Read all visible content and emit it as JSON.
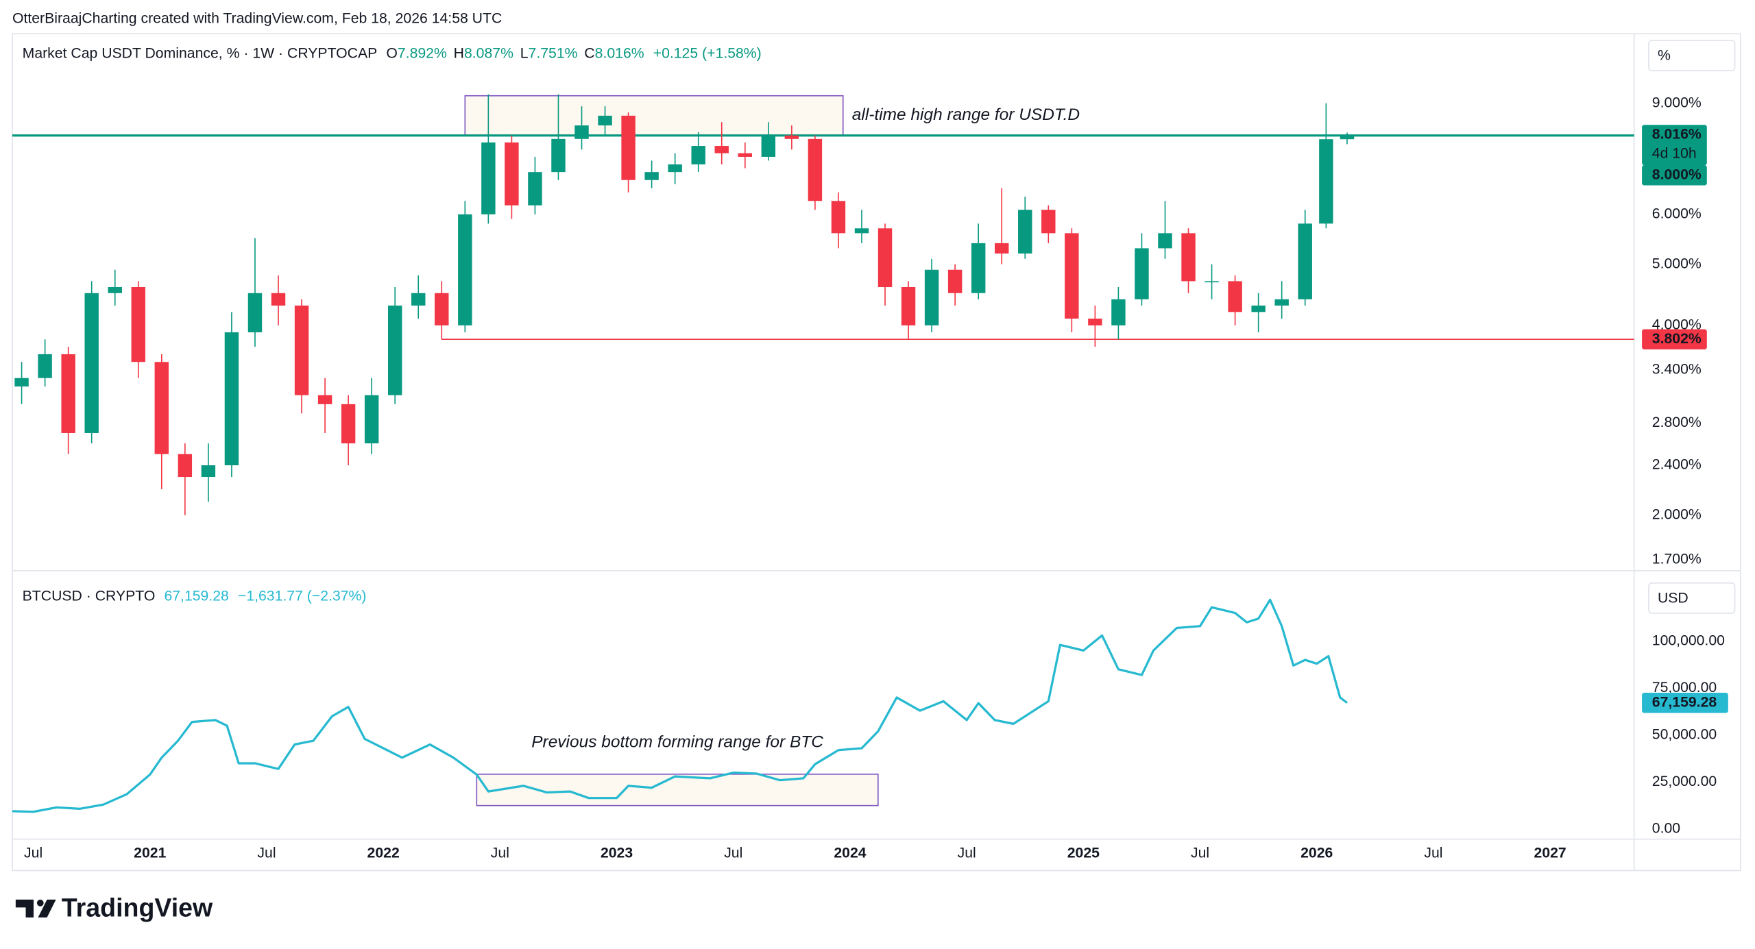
{
  "header": {
    "title": "OtterBiraajCharting created with TradingView.com, Feb 18, 2026 14:58 UTC"
  },
  "chart_data": [
    {
      "type": "candlestick",
      "title": "Market Cap USDT Dominance, % · 1W · CRYPTOCAP",
      "ohlc_legend": [
        {
          "key": "O",
          "value": "7.892%"
        },
        {
          "key": "H",
          "value": "8.087%"
        },
        {
          "key": "L",
          "value": "7.751%"
        },
        {
          "key": "C",
          "value": "8.016%"
        }
      ],
      "change": "+0.125 (+1.58%)",
      "unit_label": "%",
      "log_scale": true,
      "up_color": "#089981",
      "down_color": "#f23645",
      "x": [
        2020.45,
        2020.55,
        2020.65,
        2020.75,
        2020.85,
        2020.95,
        2021.05,
        2021.15,
        2021.25,
        2021.35,
        2021.45,
        2021.55,
        2021.65,
        2021.75,
        2021.85,
        2021.95,
        2022.05,
        2022.15,
        2022.25,
        2022.35,
        2022.45,
        2022.55,
        2022.65,
        2022.75,
        2022.85,
        2022.95,
        2023.05,
        2023.15,
        2023.25,
        2023.35,
        2023.45,
        2023.55,
        2023.65,
        2023.75,
        2023.85,
        2023.95,
        2024.05,
        2024.15,
        2024.25,
        2024.35,
        2024.45,
        2024.55,
        2024.65,
        2024.75,
        2024.85,
        2024.95,
        2025.05,
        2025.15,
        2025.25,
        2025.35,
        2025.45,
        2025.55,
        2025.65,
        2025.75,
        2025.85,
        2025.95,
        2026.04,
        2026.13
      ],
      "open": [
        3.2,
        3.3,
        3.6,
        2.7,
        4.5,
        4.6,
        3.5,
        2.5,
        2.3,
        2.4,
        3.9,
        4.5,
        4.3,
        3.1,
        3.0,
        2.6,
        3.1,
        4.3,
        4.5,
        4.0,
        6.0,
        7.8,
        6.2,
        7.0,
        7.9,
        8.3,
        8.6,
        6.8,
        7.0,
        7.2,
        7.7,
        7.5,
        7.4,
        8.0,
        7.9,
        6.3,
        5.6,
        5.7,
        4.6,
        4.0,
        4.9,
        4.5,
        5.4,
        5.2,
        6.1,
        5.6,
        4.1,
        4.0,
        4.4,
        5.3,
        5.6,
        4.7,
        4.7,
        4.2,
        4.3,
        4.4,
        5.8,
        7.892
      ],
      "high": [
        3.5,
        3.8,
        3.7,
        4.7,
        4.9,
        4.7,
        3.6,
        2.6,
        2.6,
        4.2,
        5.5,
        4.8,
        4.4,
        3.3,
        3.1,
        3.3,
        4.6,
        4.8,
        4.7,
        6.3,
        9.3,
        8.0,
        7.4,
        9.3,
        8.9,
        8.9,
        8.7,
        7.3,
        7.5,
        8.1,
        8.4,
        7.8,
        8.4,
        8.3,
        8.0,
        6.5,
        6.1,
        5.8,
        4.7,
        5.1,
        5.0,
        5.8,
        6.6,
        6.4,
        6.2,
        5.7,
        4.3,
        4.6,
        5.6,
        6.3,
        5.7,
        5.0,
        4.8,
        4.5,
        4.7,
        6.1,
        9.0,
        8.087
      ],
      "low": [
        3.0,
        3.2,
        2.5,
        2.6,
        4.3,
        3.3,
        2.2,
        2.0,
        2.1,
        2.3,
        3.7,
        4.0,
        2.9,
        2.7,
        2.4,
        2.5,
        3.0,
        4.1,
        3.8,
        3.9,
        5.8,
        5.9,
        6.0,
        6.8,
        7.6,
        8.0,
        6.5,
        6.6,
        6.7,
        7.0,
        7.2,
        7.1,
        7.3,
        7.6,
        6.1,
        5.3,
        5.4,
        4.3,
        3.8,
        3.9,
        4.3,
        4.4,
        5.0,
        5.1,
        5.4,
        3.9,
        3.7,
        3.8,
        4.3,
        5.1,
        4.5,
        4.4,
        4.0,
        3.9,
        4.1,
        4.3,
        5.7,
        7.751
      ],
      "close": [
        3.3,
        3.6,
        2.7,
        4.5,
        4.6,
        3.5,
        2.5,
        2.3,
        2.4,
        3.9,
        4.5,
        4.3,
        3.1,
        3.0,
        2.6,
        3.1,
        4.3,
        4.5,
        4.0,
        6.0,
        7.8,
        6.2,
        7.0,
        7.9,
        8.3,
        8.6,
        6.8,
        7.0,
        7.2,
        7.7,
        7.5,
        7.4,
        8.0,
        7.9,
        6.3,
        5.6,
        5.7,
        4.6,
        4.0,
        4.9,
        4.5,
        5.4,
        5.2,
        6.1,
        5.6,
        4.1,
        4.0,
        4.4,
        5.3,
        5.6,
        4.7,
        4.7,
        4.2,
        4.3,
        4.4,
        5.8,
        7.892,
        8.016
      ],
      "xlim": [
        2020.41,
        2027.36
      ],
      "ylim": [
        1.667,
        11.6
      ],
      "yticks": [
        {
          "value": 1.7,
          "label": "1.700%"
        },
        {
          "value": 2.0,
          "label": "2.000%"
        },
        {
          "value": 2.4,
          "label": "2.400%"
        },
        {
          "value": 2.8,
          "label": "2.800%"
        },
        {
          "value": 3.4,
          "label": "3.400%"
        },
        {
          "value": 4.0,
          "label": "4.000%"
        },
        {
          "value": 5.0,
          "label": "5.000%"
        },
        {
          "value": 6.0,
          "label": "6.000%"
        },
        {
          "value": 9.0,
          "label": "9.000%"
        }
      ],
      "hlines": [
        {
          "value": 8.0,
          "label": "8.000%",
          "color": "#089981"
        },
        {
          "value": 3.802,
          "label": "3.802%",
          "color": "#f23645",
          "x_start": 2022.25
        }
      ],
      "last_price": {
        "value": 8.016,
        "label": "8.016%",
        "countdown": "4d 10h",
        "color": "#089981"
      },
      "ranges": [
        {
          "label": "all-time high range for USDT.D",
          "label_color": "#4caf50",
          "xlim": [
            2022.35,
            2023.97
          ],
          "ylim": [
            8.0,
            9.25
          ]
        }
      ]
    },
    {
      "type": "line",
      "title": "BTCUSD · CRYPTO",
      "last": "67,159.28",
      "change": "−1,631.77 (−2.37%)",
      "unit_label": "USD",
      "color": "#26b9d0",
      "x": [
        2020.41,
        2020.5,
        2020.6,
        2020.7,
        2020.8,
        2020.9,
        2021.0,
        2021.05,
        2021.12,
        2021.18,
        2021.28,
        2021.33,
        2021.38,
        2021.45,
        2021.55,
        2021.62,
        2021.7,
        2021.78,
        2021.85,
        2021.92,
        2022.0,
        2022.08,
        2022.2,
        2022.3,
        2022.4,
        2022.45,
        2022.6,
        2022.7,
        2022.8,
        2022.88,
        2023.0,
        2023.05,
        2023.15,
        2023.25,
        2023.4,
        2023.5,
        2023.6,
        2023.7,
        2023.8,
        2023.85,
        2023.95,
        2024.05,
        2024.12,
        2024.2,
        2024.3,
        2024.4,
        2024.5,
        2024.55,
        2024.62,
        2024.7,
        2024.8,
        2024.85,
        2024.9,
        2025.0,
        2025.08,
        2025.15,
        2025.25,
        2025.3,
        2025.4,
        2025.5,
        2025.55,
        2025.65,
        2025.7,
        2025.75,
        2025.8,
        2025.85,
        2025.9,
        2025.95,
        2026.0,
        2026.05,
        2026.1,
        2026.13
      ],
      "values": [
        9500,
        9200,
        11500,
        10800,
        13000,
        18500,
        29000,
        38000,
        47000,
        57000,
        58000,
        55000,
        35000,
        35000,
        32000,
        45000,
        47000,
        60000,
        65000,
        48000,
        43000,
        38000,
        45000,
        38000,
        29000,
        20000,
        23000,
        19500,
        20000,
        16500,
        16500,
        23000,
        22000,
        28000,
        27000,
        30000,
        29500,
        26000,
        27000,
        34500,
        42000,
        43000,
        52000,
        70000,
        63000,
        68000,
        58000,
        67000,
        58000,
        56000,
        64000,
        68000,
        98000,
        95000,
        103000,
        85000,
        82000,
        95000,
        107000,
        108000,
        118000,
        115000,
        110000,
        112000,
        122000,
        108000,
        87000,
        90000,
        88000,
        92000,
        70000,
        67159.28
      ],
      "xlim": [
        2020.41,
        2027.36
      ],
      "ylim": [
        -5400,
        134500
      ],
      "yticks": [
        {
          "value": 0,
          "label": "0.00"
        },
        {
          "value": 25000,
          "label": "25,000.00"
        },
        {
          "value": 50000,
          "label": "50,000.00"
        },
        {
          "value": 75000,
          "label": "75,000.00"
        },
        {
          "value": 100000,
          "label": "100,000.00"
        }
      ],
      "xticks": [
        {
          "value": 2020.5,
          "label": "Jul"
        },
        {
          "value": 2021,
          "label": "2021"
        },
        {
          "value": 2021.5,
          "label": "Jul"
        },
        {
          "value": 2022,
          "label": "2022"
        },
        {
          "value": 2022.5,
          "label": "Jul"
        },
        {
          "value": 2023,
          "label": "2023"
        },
        {
          "value": 2023.5,
          "label": "Jul"
        },
        {
          "value": 2024,
          "label": "2024"
        },
        {
          "value": 2024.5,
          "label": "Jul"
        },
        {
          "value": 2025,
          "label": "2025"
        },
        {
          "value": 2025.5,
          "label": "Jul"
        },
        {
          "value": 2026,
          "label": "2026"
        },
        {
          "value": 2026.5,
          "label": "Jul"
        },
        {
          "value": 2027,
          "label": "2027"
        }
      ],
      "last_price": {
        "value": 67159.28,
        "label": "67,159.28",
        "color": "#26b9d0"
      },
      "ranges": [
        {
          "label": "Previous bottom forming range for BTC",
          "label_color": "#f23645",
          "xlim": [
            2022.4,
            2024.12
          ],
          "ylim": [
            12500,
            29200
          ]
        }
      ]
    }
  ],
  "footer": {
    "logo": "TradingView"
  }
}
